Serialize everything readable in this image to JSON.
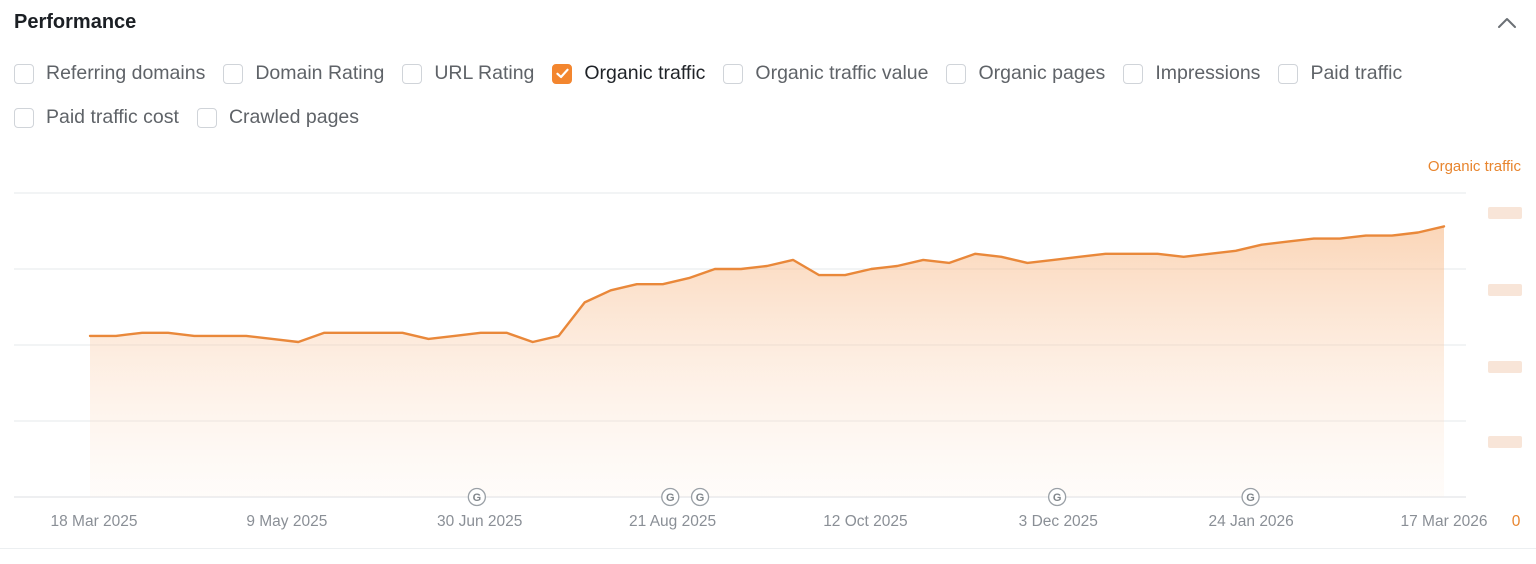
{
  "panel": {
    "title": "Performance"
  },
  "metrics": {
    "row1": [
      {
        "label": "Referring domains",
        "checked": false
      },
      {
        "label": "Domain Rating",
        "checked": false
      },
      {
        "label": "URL Rating",
        "checked": false
      },
      {
        "label": "Organic traffic",
        "checked": true
      },
      {
        "label": "Organic traffic value",
        "checked": false
      },
      {
        "label": "Organic pages",
        "checked": false
      },
      {
        "label": "Impressions",
        "checked": false
      },
      {
        "label": "Paid traffic",
        "checked": false
      }
    ],
    "row2": [
      {
        "label": "Paid traffic cost",
        "checked": false
      },
      {
        "label": "Crawled pages",
        "checked": false
      }
    ]
  },
  "colors": {
    "accent": "#f3862f",
    "line": "#e9883a",
    "grid": "#e6e8eb",
    "muted": "#8a8f96"
  },
  "chart_data": {
    "type": "area",
    "title": "",
    "xlabel": "",
    "ylabel": "",
    "legend": {
      "entries": [
        "Organic traffic"
      ],
      "placement": "top-right"
    },
    "x_ticks": [
      "18 Mar 2025",
      "9 May 2025",
      "30 Jun 2025",
      "21 Aug 2025",
      "12 Oct 2025",
      "3 Dec 2025",
      "24 Jan 2026",
      "17 Mar 2026"
    ],
    "x_range": [
      "2025-03-18",
      "2026-03-17"
    ],
    "y_axis": {
      "zero_label": "0",
      "other_labels_obscured": true
    },
    "ylim": [
      0,
      100
    ],
    "grid": true,
    "google_update_markers": [
      "2025-06-30",
      "2025-08-21",
      "2025-08-29",
      "2025-12-03",
      "2026-01-24"
    ],
    "series": [
      {
        "name": "Organic traffic",
        "x": [
          "2025-03-18",
          "2025-03-25",
          "2025-04-01",
          "2025-04-08",
          "2025-04-15",
          "2025-04-22",
          "2025-04-29",
          "2025-05-06",
          "2025-05-13",
          "2025-05-20",
          "2025-05-27",
          "2025-06-03",
          "2025-06-10",
          "2025-06-17",
          "2025-06-24",
          "2025-07-01",
          "2025-07-08",
          "2025-07-15",
          "2025-07-22",
          "2025-07-29",
          "2025-08-05",
          "2025-08-12",
          "2025-08-19",
          "2025-08-26",
          "2025-09-02",
          "2025-09-09",
          "2025-09-16",
          "2025-09-23",
          "2025-09-30",
          "2025-10-07",
          "2025-10-14",
          "2025-10-21",
          "2025-10-28",
          "2025-11-04",
          "2025-11-11",
          "2025-11-18",
          "2025-11-25",
          "2025-12-02",
          "2025-12-09",
          "2025-12-16",
          "2025-12-23",
          "2025-12-30",
          "2026-01-06",
          "2026-01-13",
          "2026-01-20",
          "2026-01-27",
          "2026-02-03",
          "2026-02-10",
          "2026-02-17",
          "2026-02-24",
          "2026-03-03",
          "2026-03-10",
          "2026-03-17"
        ],
        "values": [
          53,
          53,
          54,
          54,
          53,
          53,
          53,
          52,
          51,
          54,
          54,
          54,
          54,
          52,
          53,
          54,
          54,
          51,
          53,
          64,
          68,
          70,
          70,
          72,
          75,
          75,
          76,
          78,
          73,
          73,
          75,
          76,
          78,
          77,
          80,
          79,
          77,
          78,
          79,
          80,
          80,
          80,
          79,
          80,
          81,
          83,
          84,
          85,
          85,
          86,
          86,
          87,
          89
        ]
      }
    ]
  }
}
